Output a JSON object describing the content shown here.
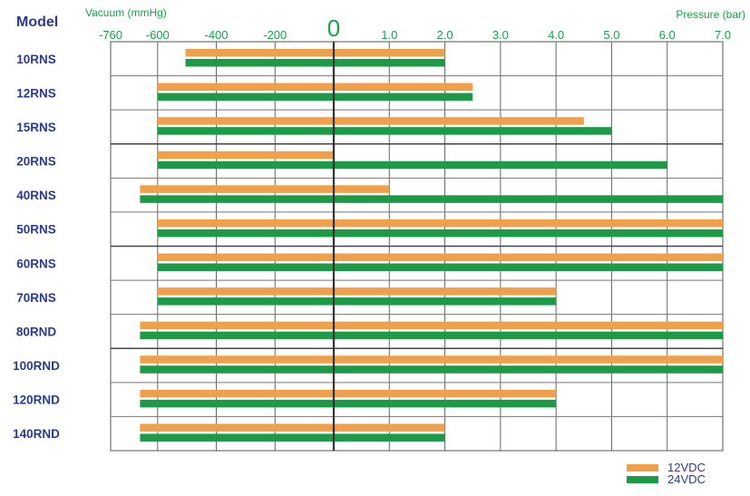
{
  "chart_data": {
    "type": "bar",
    "header_label": "Model",
    "left_axis_title": "Vacuum (mmHg)",
    "right_axis_title": "Pressure (bar)",
    "zero_label": "0",
    "vacuum_ticks": [
      {
        "label": "-760",
        "value": -760
      },
      {
        "label": "-600",
        "value": -600
      },
      {
        "label": "-400",
        "value": -400
      },
      {
        "label": "-200",
        "value": -200
      }
    ],
    "pressure_ticks": [
      {
        "label": "1.0",
        "value": 1.0
      },
      {
        "label": "2.0",
        "value": 2.0
      },
      {
        "label": "3.0",
        "value": 3.0
      },
      {
        "label": "4.0",
        "value": 4.0
      },
      {
        "label": "5.0",
        "value": 5.0
      },
      {
        "label": "6.0",
        "value": 6.0
      },
      {
        "label": "7.0",
        "value": 7.0
      }
    ],
    "categories": [
      "10RNS",
      "12RNS",
      "15RNS",
      "20RNS",
      "40RNS",
      "50RNS",
      "60RNS",
      "70RNS",
      "80RND",
      "100RND",
      "120RND",
      "140RND"
    ],
    "series": [
      {
        "name": "12VDC",
        "color": "#f0a04b",
        "vacuum_mmHg": [
          -505,
          -600,
          -600,
          -600,
          -660,
          -600,
          -600,
          -600,
          -660,
          -660,
          -660,
          -660
        ],
        "pressure_bar": [
          2.0,
          2.5,
          4.5,
          0,
          1.0,
          7.0,
          7.0,
          4.0,
          7.0,
          7.0,
          4.0,
          2.0
        ]
      },
      {
        "name": "24VDC",
        "color": "#1c9a47",
        "vacuum_mmHg": [
          -505,
          -600,
          -600,
          -600,
          -660,
          -600,
          -600,
          -600,
          -660,
          -660,
          -660,
          -660
        ],
        "pressure_bar": [
          2.0,
          2.5,
          5.0,
          6.0,
          7.0,
          7.0,
          7.0,
          4.0,
          7.0,
          7.0,
          4.0,
          2.0
        ]
      }
    ]
  }
}
